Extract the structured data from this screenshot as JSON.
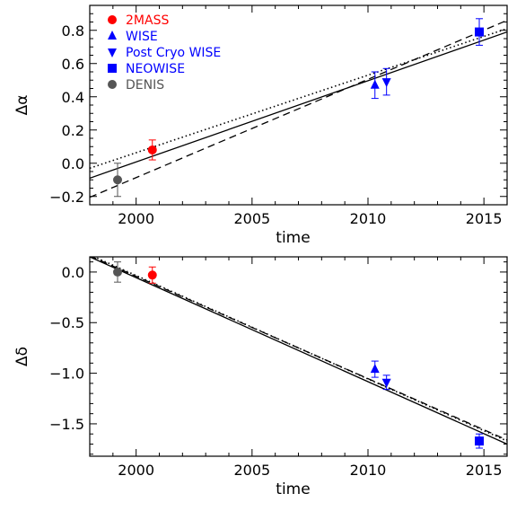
{
  "chart_data": [
    {
      "type": "scatter",
      "xlabel": "time",
      "ylabel": "Δα",
      "xlim": [
        1998,
        2016
      ],
      "ylim": [
        -0.25,
        0.95
      ],
      "x_ticks": [
        2000,
        2005,
        2010,
        2015
      ],
      "x_tick_labels": [
        "2000",
        "2005",
        "2010",
        "2015"
      ],
      "y_ticks": [
        -0.2,
        0.0,
        0.2,
        0.4,
        0.6,
        0.8
      ],
      "y_tick_labels": [
        "−0.2",
        "0.0",
        "0.2",
        "0.4",
        "0.6",
        "0.8"
      ],
      "grid": false,
      "legend_position": "top-left",
      "series": [
        {
          "name": "2MASS",
          "marker": "circle",
          "color": "#ff0000",
          "points": [
            {
              "x": 2000.7,
              "y": 0.08,
              "err": 0.06
            }
          ]
        },
        {
          "name": "WISE",
          "marker": "triangle-up",
          "color": "#0000ff",
          "points": [
            {
              "x": 2010.3,
              "y": 0.47,
              "err": 0.08
            }
          ]
        },
        {
          "name": "Post Cryo WISE",
          "marker": "triangle-down",
          "color": "#0000ff",
          "points": [
            {
              "x": 2010.8,
              "y": 0.49,
              "err": 0.08
            }
          ]
        },
        {
          "name": "NEOWISE",
          "marker": "square",
          "color": "#0000ff",
          "points": [
            {
              "x": 2014.8,
              "y": 0.79,
              "err": 0.08
            }
          ]
        },
        {
          "name": "DENIS",
          "marker": "circle",
          "color": "#555555",
          "points": [
            {
              "x": 1999.2,
              "y": -0.1,
              "err": 0.1
            }
          ]
        }
      ],
      "fit_lines": [
        {
          "style": "solid",
          "x": [
            1998,
            2016
          ],
          "y": [
            -0.09,
            0.79
          ]
        },
        {
          "style": "dashed",
          "x": [
            1998,
            2016
          ],
          "y": [
            -0.205,
            0.86
          ]
        },
        {
          "style": "dotted",
          "x": [
            1998,
            2016
          ],
          "y": [
            -0.03,
            0.81
          ]
        }
      ]
    },
    {
      "type": "scatter",
      "xlabel": "time",
      "ylabel": "Δδ",
      "xlim": [
        1998,
        2016
      ],
      "ylim": [
        -1.82,
        0.15
      ],
      "x_ticks": [
        2000,
        2005,
        2010,
        2015
      ],
      "x_tick_labels": [
        "2000",
        "2005",
        "2010",
        "2015"
      ],
      "y_ticks": [
        0.0,
        -0.5,
        -1.0,
        -1.5
      ],
      "y_tick_labels": [
        "0.0",
        "−0.5",
        "−1.0",
        "−1.5"
      ],
      "grid": false,
      "series": [
        {
          "name": "2MASS",
          "marker": "circle",
          "color": "#ff0000",
          "points": [
            {
              "x": 2000.7,
              "y": -0.03,
              "err": 0.08
            }
          ]
        },
        {
          "name": "WISE",
          "marker": "triangle-up",
          "color": "#0000ff",
          "points": [
            {
              "x": 2010.3,
              "y": -0.96,
              "err": 0.08
            }
          ]
        },
        {
          "name": "Post Cryo WISE",
          "marker": "triangle-down",
          "color": "#0000ff",
          "points": [
            {
              "x": 2010.8,
              "y": -1.09,
              "err": 0.07
            }
          ]
        },
        {
          "name": "NEOWISE",
          "marker": "square",
          "color": "#0000ff",
          "points": [
            {
              "x": 2014.8,
              "y": -1.67,
              "err": 0.07
            }
          ]
        },
        {
          "name": "DENIS",
          "marker": "circle",
          "color": "#555555",
          "points": [
            {
              "x": 1999.2,
              "y": 0.0,
              "err": 0.1
            }
          ]
        }
      ],
      "fit_lines": [
        {
          "style": "solid",
          "x": [
            1998,
            2016
          ],
          "y": [
            0.15,
            -1.7
          ]
        },
        {
          "style": "dashed",
          "x": [
            1998,
            2016
          ],
          "y": [
            0.16,
            -1.66
          ]
        },
        {
          "style": "dotted",
          "x": [
            1998,
            2016
          ],
          "y": [
            0.17,
            -1.67
          ]
        }
      ]
    }
  ]
}
